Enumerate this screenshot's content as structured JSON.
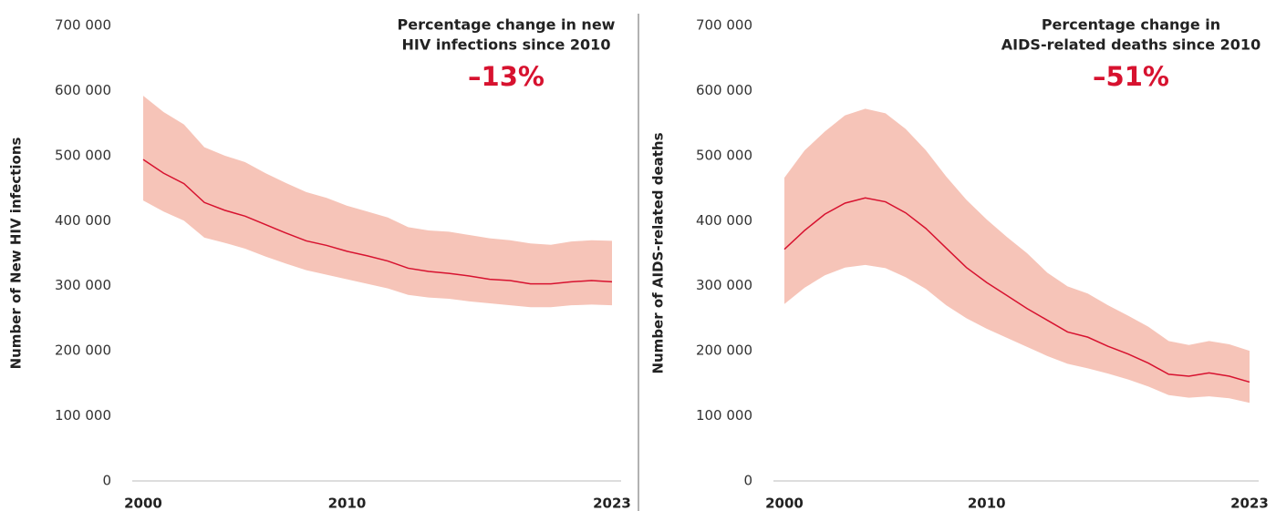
{
  "chart_data": [
    {
      "type": "line",
      "ylabel": "Number of New HIV infections",
      "annotation": [
        "Percentage change in new",
        "HIV infections since 2010"
      ],
      "change": "–13%",
      "change_color": "#d7122f",
      "x": [
        2000,
        2001,
        2002,
        2003,
        2004,
        2005,
        2006,
        2007,
        2008,
        2009,
        2010,
        2011,
        2012,
        2013,
        2014,
        2015,
        2016,
        2017,
        2018,
        2019,
        2020,
        2021,
        2022,
        2023
      ],
      "xlim": [
        2000,
        2023
      ],
      "xticks": [
        2000,
        2010,
        2023
      ],
      "ylim": [
        0,
        700000
      ],
      "yticks": [
        {
          "value": 0,
          "label": "0"
        },
        {
          "value": 100000,
          "label": "100 000"
        },
        {
          "value": 200000,
          "label": "200 000"
        },
        {
          "value": 300000,
          "label": "300 000"
        },
        {
          "value": 400000,
          "label": "400 000"
        },
        {
          "value": 500000,
          "label": "500 000"
        },
        {
          "value": 600000,
          "label": "600 000"
        },
        {
          "value": 700000,
          "label": "700 000"
        }
      ],
      "series": [
        {
          "color": "#d7122f",
          "values": [
            494000,
            473000,
            457000,
            428000,
            416000,
            407000,
            394000,
            381000,
            369000,
            362000,
            353000,
            346000,
            338000,
            327000,
            322000,
            319000,
            315000,
            310000,
            308000,
            303000,
            303000,
            306000,
            308000,
            306000
          ]
        }
      ],
      "band": {
        "color": "#f6c4b8",
        "upper": [
          592000,
          567000,
          548000,
          513000,
          500000,
          490000,
          473000,
          458000,
          444000,
          435000,
          423000,
          414000,
          405000,
          390000,
          385000,
          383000,
          378000,
          373000,
          370000,
          365000,
          363000,
          368000,
          370000,
          369000
        ],
        "lower": [
          431000,
          414000,
          400000,
          374000,
          366000,
          357000,
          345000,
          334000,
          324000,
          317000,
          310000,
          303000,
          296000,
          286000,
          282000,
          280000,
          276000,
          273000,
          270000,
          267000,
          267000,
          270000,
          271000,
          270000
        ]
      }
    },
    {
      "type": "line",
      "ylabel": "Number of AIDS-related deaths",
      "annotation": [
        "Percentage change in",
        "AIDS-related deaths since 2010"
      ],
      "change": "–51%",
      "change_color": "#d7122f",
      "x": [
        2000,
        2001,
        2002,
        2003,
        2004,
        2005,
        2006,
        2007,
        2008,
        2009,
        2010,
        2011,
        2012,
        2013,
        2014,
        2015,
        2016,
        2017,
        2018,
        2019,
        2020,
        2021,
        2022,
        2023
      ],
      "xlim": [
        2000,
        2023
      ],
      "xticks": [
        2000,
        2010,
        2023
      ],
      "ylim": [
        0,
        700000
      ],
      "yticks": [
        {
          "value": 0,
          "label": "0"
        },
        {
          "value": 100000,
          "label": "100 000"
        },
        {
          "value": 200000,
          "label": "200 000"
        },
        {
          "value": 300000,
          "label": "300 000"
        },
        {
          "value": 400000,
          "label": "400 000"
        },
        {
          "value": 500000,
          "label": "500 000"
        },
        {
          "value": 600000,
          "label": "600 000"
        },
        {
          "value": 700000,
          "label": "700 000"
        }
      ],
      "series": [
        {
          "color": "#d7122f",
          "values": [
            356000,
            385000,
            410000,
            427000,
            435000,
            429000,
            412000,
            388000,
            358000,
            328000,
            305000,
            285000,
            265000,
            247000,
            229000,
            221000,
            207000,
            195000,
            181000,
            164000,
            161000,
            166000,
            161000,
            152000
          ]
        }
      ],
      "band": {
        "color": "#f6c4b8",
        "upper": [
          466000,
          508000,
          537000,
          562000,
          572000,
          565000,
          541000,
          508000,
          468000,
          432000,
          402000,
          375000,
          350000,
          320000,
          299000,
          288000,
          270000,
          254000,
          237000,
          215000,
          209000,
          215000,
          210000,
          200000
        ],
        "lower": [
          272000,
          297000,
          316000,
          328000,
          332000,
          327000,
          313000,
          295000,
          270000,
          250000,
          234000,
          220000,
          206000,
          192000,
          180000,
          173000,
          165000,
          156000,
          145000,
          132000,
          128000,
          130000,
          127000,
          120000
        ]
      }
    }
  ]
}
